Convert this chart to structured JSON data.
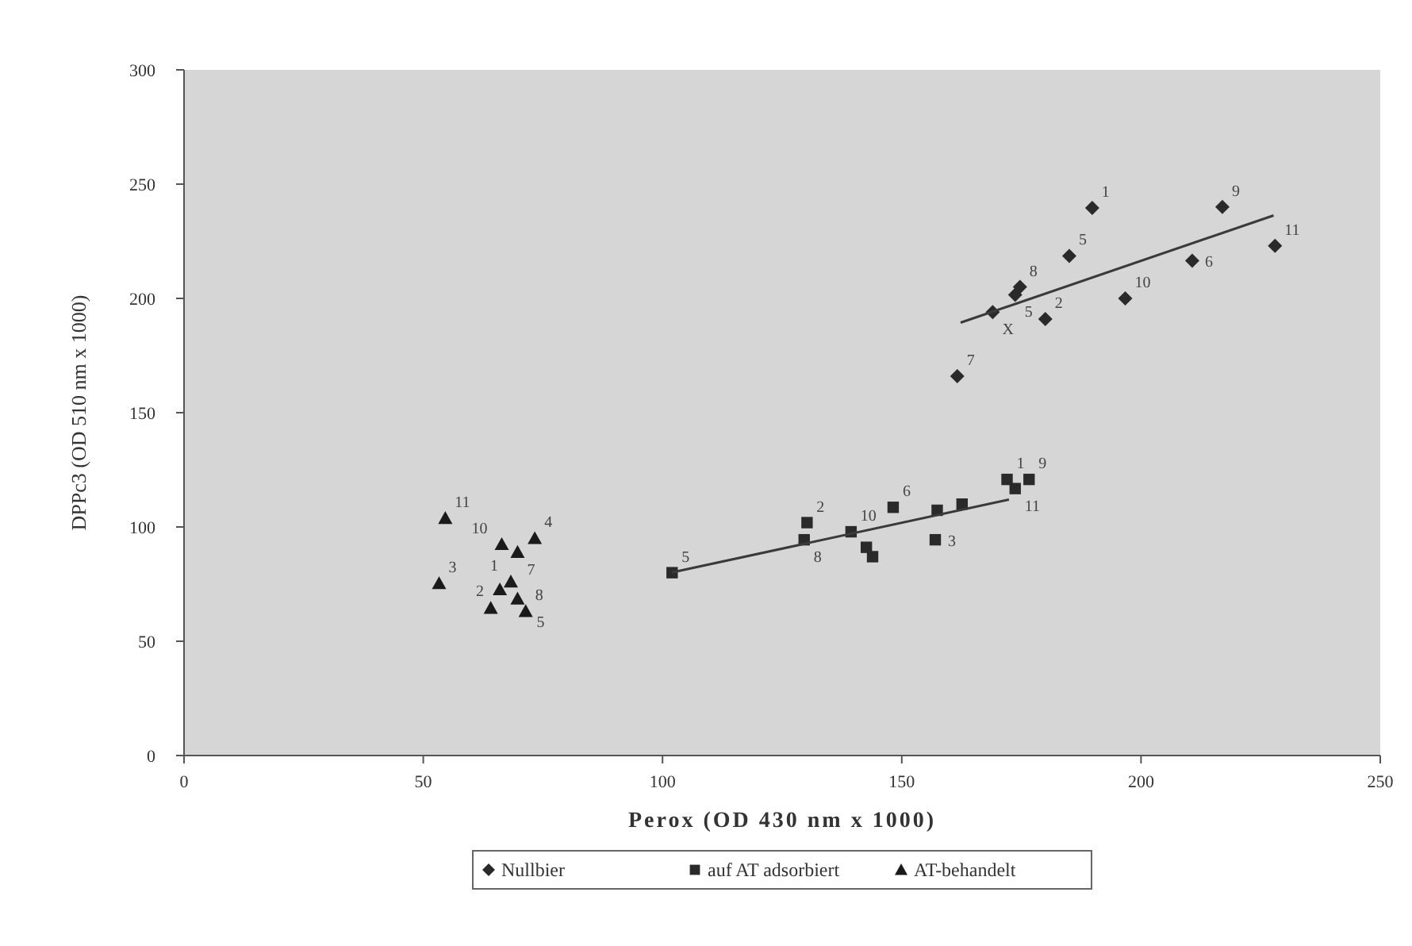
{
  "chart_data": {
    "type": "scatter",
    "xlabel": "Perox (OD 430 nm x 1000)",
    "ylabel": "DPPc3 (OD 510 nm x 1000)",
    "xlim": [
      0,
      250
    ],
    "ylim": [
      0,
      300
    ],
    "xticks": [
      0,
      50,
      100,
      150,
      200,
      250
    ],
    "yticks": [
      0,
      50,
      100,
      150,
      200,
      250,
      300
    ],
    "grid": false,
    "legend": "bottom",
    "series": [
      {
        "name": "Nullbier",
        "color": "#2a2a2a",
        "marker": "diamond",
        "x": [
          189.8,
          217,
          228,
          210.7,
          196.7,
          180,
          185,
          174.7,
          173.7,
          169,
          161.6
        ],
        "values": [
          239.6,
          240,
          223,
          216.5,
          200,
          191,
          218.6,
          205,
          201.6,
          194,
          166
        ]
      },
      {
        "name": "auf AT adsorbiert",
        "color": "#2a2a2a",
        "marker": "square",
        "x": [
          102,
          129.6,
          130.2,
          139.4,
          142.6,
          143.9,
          148.2,
          157,
          157.4,
          162.6,
          172,
          173.7,
          176.6
        ],
        "values": [
          80,
          94.4,
          101.9,
          97.9,
          91.1,
          87,
          108.6,
          94.4,
          107.3,
          110,
          120.8,
          116.8,
          120.8
        ]
      },
      {
        "name": "AT-behandelt",
        "color": "#1a1a1a",
        "marker": "triangle",
        "x": [
          54.6,
          53.3,
          66.4,
          69.7,
          73.3,
          66,
          68.3,
          69.7,
          64.1,
          71.4
        ],
        "values": [
          103.8,
          75.3,
          92.4,
          89,
          95,
          72.6,
          76,
          68.6,
          64.5,
          63.1
        ]
      },
      {
        "type": "line",
        "color": "#3a3a3a",
        "marker": "none",
        "x": [
          162.3,
          227.7
        ],
        "values": [
          189.4,
          236.3
        ]
      },
      {
        "type": "line",
        "color": "#3a3a3a",
        "marker": "none",
        "x": [
          102,
          172.4
        ],
        "values": [
          80.1,
          112
        ]
      }
    ],
    "annotations": [
      {
        "text": "1",
        "x": 189.8,
        "y": 239.6
      },
      {
        "text": "9",
        "x": 217,
        "y": 240
      },
      {
        "text": "11",
        "x": 228,
        "y": 223
      },
      {
        "text": "6",
        "x": 210.7,
        "y": 216.5
      },
      {
        "text": "10",
        "x": 196.7,
        "y": 200
      },
      {
        "text": "2",
        "x": 180,
        "y": 191
      },
      {
        "text": "5",
        "x": 185,
        "y": 218.6
      },
      {
        "text": "8",
        "x": 174.7,
        "y": 205
      },
      {
        "text": "5",
        "x": 173.7,
        "y": 201.6
      },
      {
        "text": "X",
        "x": 169,
        "y": 194
      },
      {
        "text": "7",
        "x": 161.6,
        "y": 166
      },
      {
        "text": "1",
        "x": 172,
        "y": 120.8
      },
      {
        "text": "9",
        "x": 176.6,
        "y": 120.8
      },
      {
        "text": "11",
        "x": 173.7,
        "y": 116.8
      },
      {
        "text": "6",
        "x": 148.2,
        "y": 108.6
      },
      {
        "text": "2",
        "x": 130.2,
        "y": 101.9
      },
      {
        "text": "10",
        "x": 139.4,
        "y": 97.9
      },
      {
        "text": "8",
        "x": 129.6,
        "y": 94.4
      },
      {
        "text": "3",
        "x": 157,
        "y": 94.4
      },
      {
        "text": "5",
        "x": 102,
        "y": 80
      },
      {
        "text": "11",
        "x": 54.6,
        "y": 103.8
      },
      {
        "text": "10",
        "x": 66.4,
        "y": 92.4
      },
      {
        "text": "4",
        "x": 73.3,
        "y": 95
      },
      {
        "text": "3",
        "x": 53.3,
        "y": 75.3
      },
      {
        "text": "1",
        "x": 68.3,
        "y": 76
      },
      {
        "text": "2",
        "x": 66,
        "y": 72.6
      },
      {
        "text": "7",
        "x": 69.7,
        "y": 89
      },
      {
        "text": "5",
        "x": 69.7,
        "y": 68.6
      },
      {
        "text": "8",
        "x": 71.4,
        "y": 63.1
      }
    ]
  }
}
